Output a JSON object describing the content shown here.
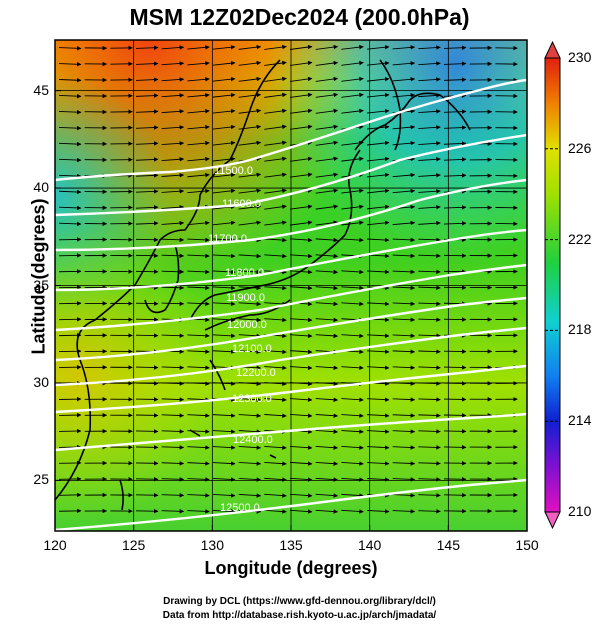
{
  "title": "MSM 12Z02Dec2024 (200.0hPa)",
  "xlabel": "Longitude (degrees)",
  "ylabel": "Latitude  (degrees)",
  "xticks": [
    "120",
    "125",
    "130",
    "135",
    "140",
    "145",
    "150"
  ],
  "yticks": [
    "25",
    "30",
    "35",
    "40",
    "45"
  ],
  "colorbar_ticks": [
    "230",
    "226",
    "222",
    "218",
    "214",
    "210"
  ],
  "contour_labels": [
    "11500.0",
    "11600.0",
    "11700.0",
    "11800.0",
    "11900.0",
    "12000.0",
    "12100.0",
    "12200.0",
    "12300.0",
    "12400.0",
    "12500.0"
  ],
  "credit_line1": "Drawing by DCL (https://www.gfd-dennou.org/library/dcl/)",
  "credit_line2": "Data from http://database.rish.kyoto-u.ac.jp/arch/jmadata/",
  "chart_data": {
    "type": "heatmap",
    "title": "MSM 12Z02Dec2024 (200.0hPa)",
    "xlabel": "Longitude (degrees)",
    "ylabel": "Latitude  (degrees)",
    "xlim": [
      120,
      150
    ],
    "ylim": [
      22.4,
      47.6
    ],
    "colorbar_range": [
      210,
      230
    ],
    "colorbar_ticks": [
      210,
      214,
      218,
      222,
      226,
      230
    ],
    "contour_levels": [
      11500,
      11600,
      11700,
      11800,
      11900,
      12000,
      12100,
      12200,
      12300,
      12400,
      12500
    ],
    "wind_vectors": "predominantly westerly (west-to-east) across the domain",
    "grid": true
  }
}
